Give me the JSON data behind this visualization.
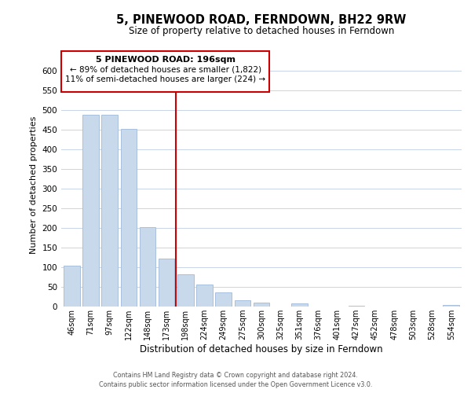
{
  "title": "5, PINEWOOD ROAD, FERNDOWN, BH22 9RW",
  "subtitle": "Size of property relative to detached houses in Ferndown",
  "xlabel": "Distribution of detached houses by size in Ferndown",
  "ylabel": "Number of detached properties",
  "bar_labels": [
    "46sqm",
    "71sqm",
    "97sqm",
    "122sqm",
    "148sqm",
    "173sqm",
    "198sqm",
    "224sqm",
    "249sqm",
    "275sqm",
    "300sqm",
    "325sqm",
    "351sqm",
    "376sqm",
    "401sqm",
    "427sqm",
    "452sqm",
    "478sqm",
    "503sqm",
    "528sqm",
    "554sqm"
  ],
  "bar_heights": [
    105,
    488,
    488,
    453,
    202,
    122,
    83,
    57,
    37,
    16,
    10,
    0,
    8,
    0,
    0,
    3,
    0,
    0,
    0,
    0,
    5
  ],
  "bar_color": "#c8d9ec",
  "bar_edge_color": "#a8c0dc",
  "reference_line_x": 5.5,
  "annotation_title": "5 PINEWOOD ROAD: 196sqm",
  "annotation_line1": "← 89% of detached houses are smaller (1,822)",
  "annotation_line2": "11% of semi-detached houses are larger (224) →",
  "annotation_box_color": "#ffffff",
  "annotation_border_color": "#cc0000",
  "vline_color": "#cc0000",
  "ylim": [
    0,
    620
  ],
  "yticks": [
    0,
    50,
    100,
    150,
    200,
    250,
    300,
    350,
    400,
    450,
    500,
    550,
    600
  ],
  "footer_line1": "Contains HM Land Registry data © Crown copyright and database right 2024.",
  "footer_line2": "Contains public sector information licensed under the Open Government Licence v3.0.",
  "background_color": "#ffffff",
  "grid_color": "#c8d4e8"
}
